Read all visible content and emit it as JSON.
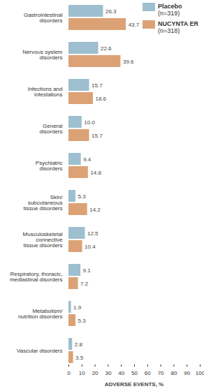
{
  "chart_data": {
    "type": "bar",
    "orientation": "horizontal",
    "categories": [
      "Gastrointestinal\ndisorders",
      "Nervous system\ndisorders",
      "Infections and\ninfestations",
      "General\ndisorders",
      "Psychiatric\ndisorders",
      "Skin/\nsubcutaneous\ntissue disorders",
      "Musculoskeletal\nconnective\ntissue disorders",
      "Respiratory, thoracic,\nmediastinal disorders",
      "Metabolism/\nnutrition disorders",
      "Vascular disorders"
    ],
    "series": [
      {
        "name": "Placebo\n(n=319)",
        "color": "#9dbfcf",
        "values": [
          26.3,
          22.6,
          15.7,
          10.0,
          9.4,
          5.3,
          12.5,
          9.1,
          1.9,
          2.8
        ],
        "value_labels": [
          "26.3",
          "22.6",
          "15.7",
          "10.0",
          "9.4",
          "5.3",
          "12.5",
          "9.1",
          "1.9",
          "2.8"
        ]
      },
      {
        "name": "NUCYNTA ER\n(n=318)",
        "color": "#dca276",
        "values": [
          43.7,
          39.6,
          18.6,
          15.7,
          14.8,
          14.2,
          10.4,
          7.2,
          5.3,
          3.5
        ],
        "value_labels": [
          "43.7",
          "39.6",
          "18.6",
          "15.7",
          "14.8",
          "14.2",
          "10.4",
          "7.2",
          "5.3",
          "3.5"
        ]
      }
    ],
    "x_label": "ADVERSE EVENTS, %",
    "xlim": [
      0,
      100
    ],
    "xticks": [
      0,
      10,
      20,
      30,
      40,
      50,
      60,
      70,
      80,
      90,
      100
    ],
    "data_labels": true,
    "legend": "top-right",
    "grid": false
  }
}
